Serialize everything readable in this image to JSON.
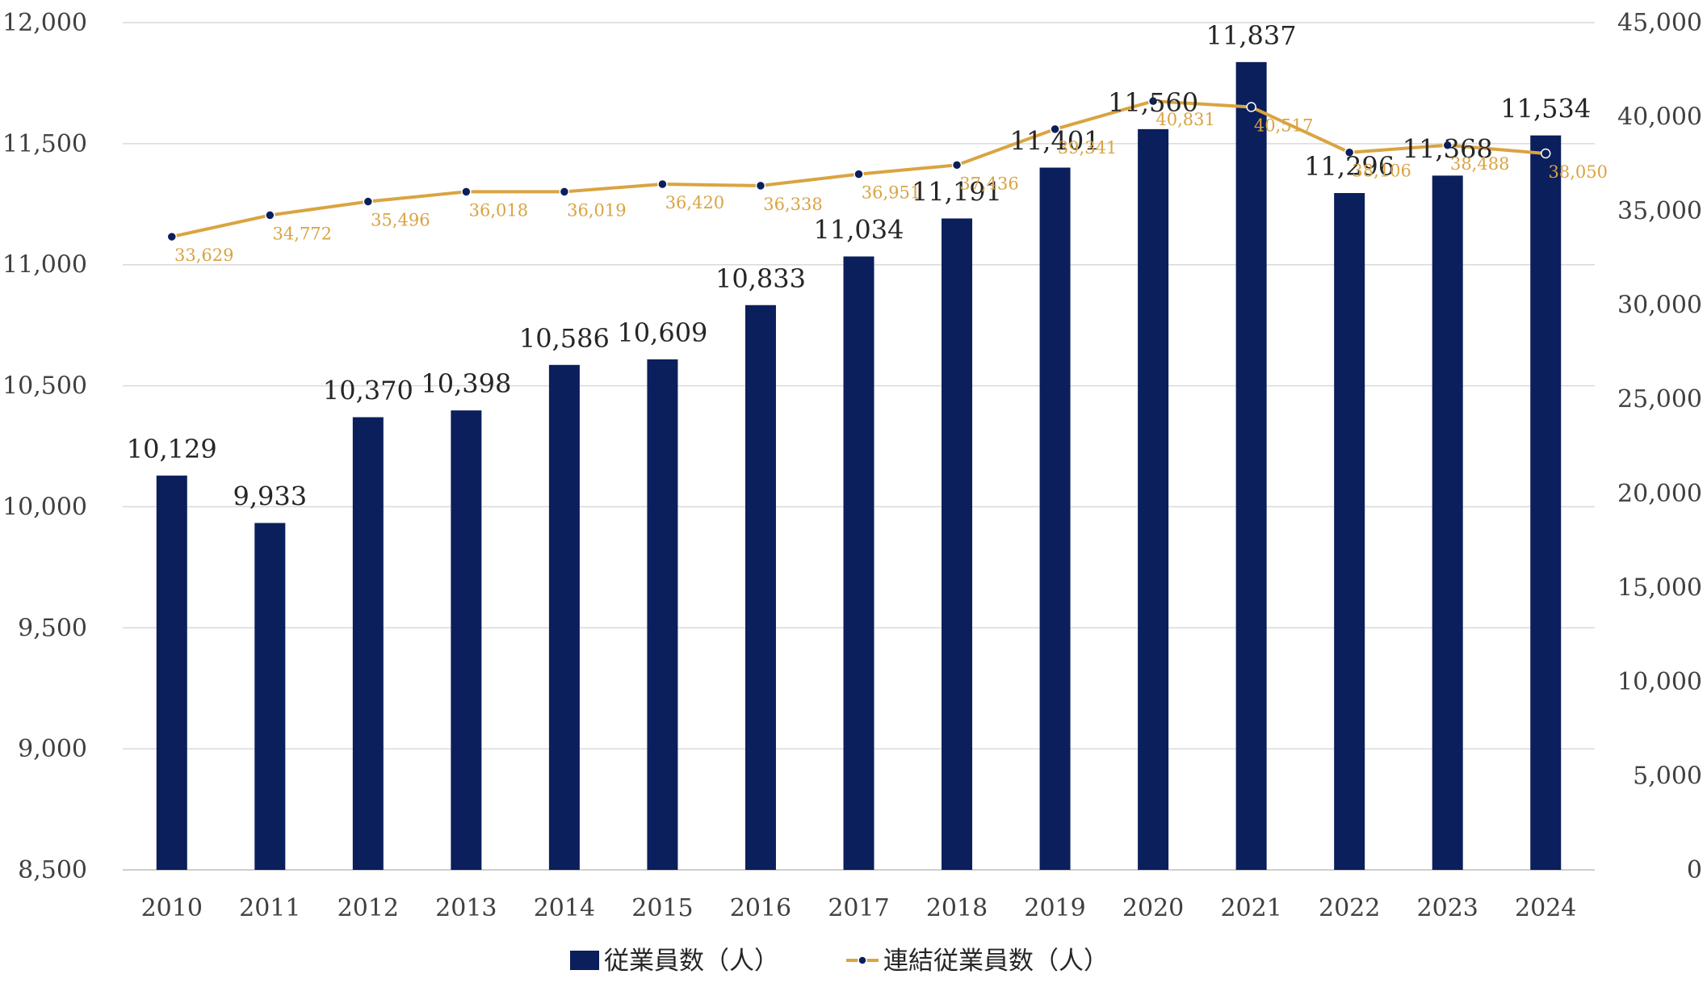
{
  "chart_data": {
    "type": "bar",
    "categories": [
      "2010",
      "2011",
      "2012",
      "2013",
      "2014",
      "2015",
      "2016",
      "2017",
      "2018",
      "2019",
      "2020",
      "2021",
      "2022",
      "2023",
      "2024"
    ],
    "series": [
      {
        "name": "従業員数（人）",
        "type": "bar",
        "axis": "left",
        "color": "#0b1f5c",
        "values": [
          10129,
          9933,
          10370,
          10398,
          10586,
          10609,
          10833,
          11034,
          11191,
          11401,
          11560,
          11837,
          11296,
          11368,
          11534
        ],
        "labels": [
          "10,129",
          "9,933",
          "10,370",
          "10,398",
          "10,586",
          "10,609",
          "10,833",
          "11,034",
          "11,191",
          "11,401",
          "11,560",
          "11,837",
          "11,296",
          "11,368",
          "11,534"
        ]
      },
      {
        "name": "連結従業員数（人）",
        "type": "line",
        "axis": "right",
        "color": "#d9a441",
        "values": [
          33629,
          34772,
          35496,
          36018,
          36019,
          36420,
          36338,
          36951,
          37436,
          39341,
          40831,
          40517,
          38106,
          38488,
          38050
        ],
        "labels": [
          "33,629",
          "34,772",
          "35,496",
          "36,018",
          "36,019",
          "36,420",
          "36,338",
          "36,951",
          "37,436",
          "39,341",
          "40,831",
          "40,517",
          "38,106",
          "38,488",
          "38,050"
        ]
      }
    ],
    "y_left": {
      "range": [
        8500,
        12000
      ],
      "ticks": [
        "8,500",
        "9,000",
        "9,500",
        "10,000",
        "10,500",
        "11,000",
        "11,500",
        "12,000"
      ]
    },
    "y_right": {
      "range": [
        0,
        45000
      ],
      "ticks": [
        "0",
        "5,000",
        "10,000",
        "15,000",
        "20,000",
        "25,000",
        "30,000",
        "35,000",
        "40,000",
        "45,000"
      ]
    },
    "grid": true,
    "legend_position": "bottom"
  },
  "legend": {
    "bar_label": "従業員数（人）",
    "line_label": "連結従業員数（人）"
  }
}
